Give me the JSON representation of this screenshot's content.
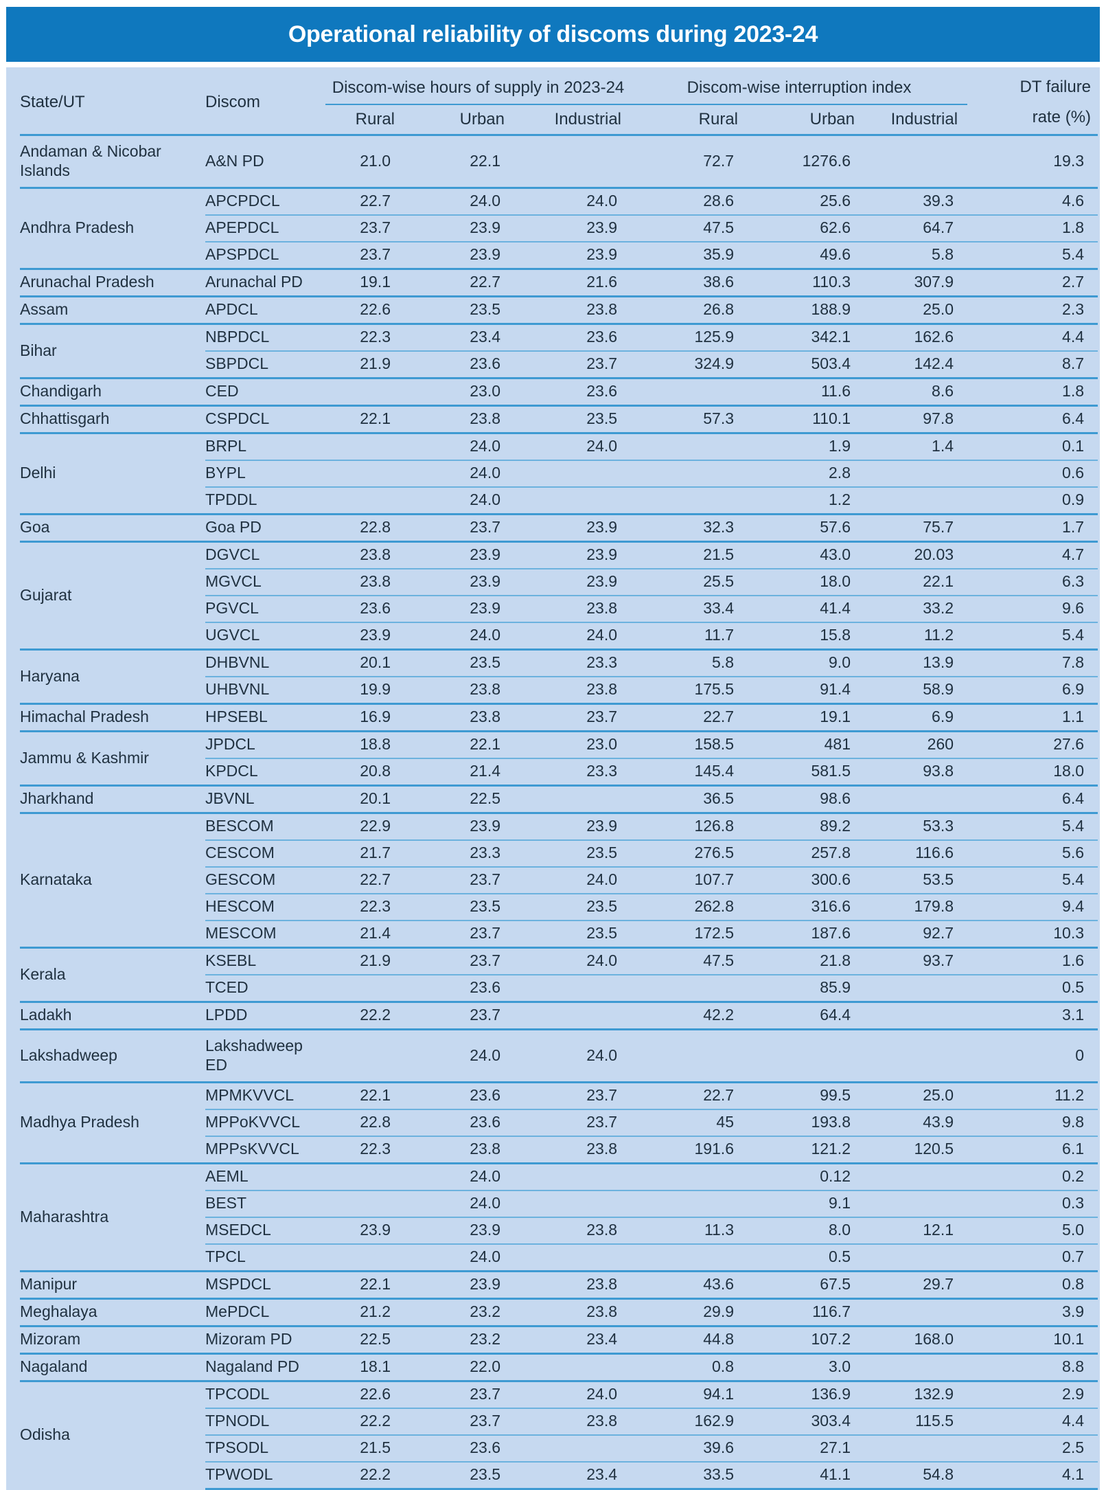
{
  "title": "Operational reliability of discoms during 2023-24",
  "colors": {
    "header_bar": "#0f78be",
    "sheet_bg": "#c6d9f0",
    "rule_heavy": "#3e9ad2",
    "rule_light": "#6cb2de",
    "text": "#203140"
  },
  "table": {
    "headers": {
      "state": "State/UT",
      "discom": "Discom",
      "hours_group": "Discom-wise hours of supply in 2023-24",
      "interruption_group": "Discom-wise interruption index",
      "dt_line1": "DT failure",
      "dt_line2": "rate (%)",
      "sub": [
        "Rural",
        "Urban",
        "Industrial",
        "Rural",
        "Urban",
        "Industrial"
      ]
    },
    "groups": [
      {
        "state": "Andaman & Nicobar Islands",
        "rows": [
          [
            "A&N PD",
            "21.0",
            "22.1",
            "",
            "72.7",
            "1276.6",
            "",
            "19.3"
          ]
        ]
      },
      {
        "state": "Andhra Pradesh",
        "rows": [
          [
            "APCPDCL",
            "22.7",
            "24.0",
            "24.0",
            "28.6",
            "25.6",
            "39.3",
            "4.6"
          ],
          [
            "APEPDCL",
            "23.7",
            "23.9",
            "23.9",
            "47.5",
            "62.6",
            "64.7",
            "1.8"
          ],
          [
            "APSPDCL",
            "23.7",
            "23.9",
            "23.9",
            "35.9",
            "49.6",
            "5.8",
            "5.4"
          ]
        ]
      },
      {
        "state": "Arunachal Pradesh",
        "rows": [
          [
            "Arunachal PD",
            "19.1",
            "22.7",
            "21.6",
            "38.6",
            "110.3",
            "307.9",
            "2.7"
          ]
        ]
      },
      {
        "state": "Assam",
        "rows": [
          [
            "APDCL",
            "22.6",
            "23.5",
            "23.8",
            "26.8",
            "188.9",
            "25.0",
            "2.3"
          ]
        ]
      },
      {
        "state": "Bihar",
        "rows": [
          [
            "NBPDCL",
            "22.3",
            "23.4",
            "23.6",
            "125.9",
            "342.1",
            "162.6",
            "4.4"
          ],
          [
            "SBPDCL",
            "21.9",
            "23.6",
            "23.7",
            "324.9",
            "503.4",
            "142.4",
            "8.7"
          ]
        ]
      },
      {
        "state": "Chandigarh",
        "rows": [
          [
            "CED",
            "",
            "23.0",
            "23.6",
            "",
            "11.6",
            "8.6",
            "1.8"
          ]
        ]
      },
      {
        "state": "Chhattisgarh",
        "rows": [
          [
            "CSPDCL",
            "22.1",
            "23.8",
            "23.5",
            "57.3",
            "110.1",
            "97.8",
            "6.4"
          ]
        ]
      },
      {
        "state": "Delhi",
        "rows": [
          [
            "BRPL",
            "",
            "24.0",
            "24.0",
            "",
            "1.9",
            "1.4",
            "0.1"
          ],
          [
            "BYPL",
            "",
            "24.0",
            "",
            "",
            "2.8",
            "",
            "0.6"
          ],
          [
            "TPDDL",
            "",
            "24.0",
            "",
            "",
            "1.2",
            "",
            "0.9"
          ]
        ]
      },
      {
        "state": "Goa",
        "rows": [
          [
            "Goa PD",
            "22.8",
            "23.7",
            "23.9",
            "32.3",
            "57.6",
            "75.7",
            "1.7"
          ]
        ]
      },
      {
        "state": "Gujarat",
        "rows": [
          [
            "DGVCL",
            "23.8",
            "23.9",
            "23.9",
            "21.5",
            "43.0",
            "20.03",
            "4.7"
          ],
          [
            "MGVCL",
            "23.8",
            "23.9",
            "23.9",
            "25.5",
            "18.0",
            "22.1",
            "6.3"
          ],
          [
            "PGVCL",
            "23.6",
            "23.9",
            "23.8",
            "33.4",
            "41.4",
            "33.2",
            "9.6"
          ],
          [
            "UGVCL",
            "23.9",
            "24.0",
            "24.0",
            "11.7",
            "15.8",
            "11.2",
            "5.4"
          ]
        ]
      },
      {
        "state": "Haryana",
        "rows": [
          [
            "DHBVNL",
            "20.1",
            "23.5",
            "23.3",
            "5.8",
            "9.0",
            "13.9",
            "7.8"
          ],
          [
            "UHBVNL",
            "19.9",
            "23.8",
            "23.8",
            "175.5",
            "91.4",
            "58.9",
            "6.9"
          ]
        ]
      },
      {
        "state": "Himachal Pradesh",
        "rows": [
          [
            "HPSEBL",
            "16.9",
            "23.8",
            "23.7",
            "22.7",
            "19.1",
            "6.9",
            "1.1"
          ]
        ]
      },
      {
        "state": "Jammu & Kashmir",
        "rows": [
          [
            "JPDCL",
            "18.8",
            "22.1",
            "23.0",
            "158.5",
            "481",
            "260",
            "27.6"
          ],
          [
            "KPDCL",
            "20.8",
            "21.4",
            "23.3",
            "145.4",
            "581.5",
            "93.8",
            "18.0"
          ]
        ]
      },
      {
        "state": "Jharkhand",
        "rows": [
          [
            "JBVNL",
            "20.1",
            "22.5",
            "",
            "36.5",
            "98.6",
            "",
            "6.4"
          ]
        ]
      },
      {
        "state": "Karnataka",
        "rows": [
          [
            "BESCOM",
            "22.9",
            "23.9",
            "23.9",
            "126.8",
            "89.2",
            "53.3",
            "5.4"
          ],
          [
            "CESCOM",
            "21.7",
            "23.3",
            "23.5",
            "276.5",
            "257.8",
            "116.6",
            "5.6"
          ],
          [
            "GESCOM",
            "22.7",
            "23.7",
            "24.0",
            "107.7",
            "300.6",
            "53.5",
            "5.4"
          ],
          [
            "HESCOM",
            "22.3",
            "23.5",
            "23.5",
            "262.8",
            "316.6",
            "179.8",
            "9.4"
          ],
          [
            "MESCOM",
            "21.4",
            "23.7",
            "23.5",
            "172.5",
            "187.6",
            "92.7",
            "10.3"
          ]
        ]
      },
      {
        "state": "Kerala",
        "rows": [
          [
            "KSEBL",
            "21.9",
            "23.7",
            "24.0",
            "47.5",
            "21.8",
            "93.7",
            "1.6"
          ],
          [
            "TCED",
            "",
            "23.6",
            "",
            "",
            "85.9",
            "",
            "0.5"
          ]
        ]
      },
      {
        "state": "Ladakh",
        "rows": [
          [
            "LPDD",
            "22.2",
            "23.7",
            "",
            "42.2",
            "64.4",
            "",
            "3.1"
          ]
        ]
      },
      {
        "state": "Lakshadweep",
        "rows": [
          [
            "Lakshadweep ED",
            "",
            "24.0",
            "24.0",
            "",
            "",
            "",
            "0"
          ]
        ]
      },
      {
        "state": "Madhya Pradesh",
        "rows": [
          [
            "MPMKVVCL",
            "22.1",
            "23.6",
            "23.7",
            "22.7",
            "99.5",
            "25.0",
            "11.2"
          ],
          [
            "MPPoKVVCL",
            "22.8",
            "23.6",
            "23.7",
            "45",
            "193.8",
            "43.9",
            "9.8"
          ],
          [
            "MPPsKVVCL",
            "22.3",
            "23.8",
            "23.8",
            "191.6",
            "121.2",
            "120.5",
            "6.1"
          ]
        ]
      },
      {
        "state": "Maharashtra",
        "rows": [
          [
            "AEML",
            "",
            "24.0",
            "",
            "",
            "0.12",
            "",
            "0.2"
          ],
          [
            "BEST",
            "",
            "24.0",
            "",
            "",
            "9.1",
            "",
            "0.3"
          ],
          [
            "MSEDCL",
            "23.9",
            "23.9",
            "23.8",
            "11.3",
            "8.0",
            "12.1",
            "5.0"
          ],
          [
            "TPCL",
            "",
            "24.0",
            "",
            "",
            "0.5",
            "",
            "0.7"
          ]
        ]
      },
      {
        "state": "Manipur",
        "rows": [
          [
            "MSPDCL",
            "22.1",
            "23.9",
            "23.8",
            "43.6",
            "67.5",
            "29.7",
            "0.8"
          ]
        ]
      },
      {
        "state": "Meghalaya",
        "rows": [
          [
            "MePDCL",
            "21.2",
            "23.2",
            "23.8",
            "29.9",
            "116.7",
            "",
            "3.9"
          ]
        ]
      },
      {
        "state": "Mizoram",
        "rows": [
          [
            "Mizoram PD",
            "22.5",
            "23.2",
            "23.4",
            "44.8",
            "107.2",
            "168.0",
            "10.1"
          ]
        ]
      },
      {
        "state": "Nagaland",
        "rows": [
          [
            "Nagaland PD",
            "18.1",
            "22.0",
            "",
            "0.8",
            "3.0",
            "",
            "8.8"
          ]
        ]
      },
      {
        "state": "Odisha",
        "rows": [
          [
            "TPCODL",
            "22.6",
            "23.7",
            "24.0",
            "94.1",
            "136.9",
            "132.9",
            "2.9"
          ],
          [
            "TPNODL",
            "22.2",
            "23.7",
            "23.8",
            "162.9",
            "303.4",
            "115.5",
            "4.4"
          ],
          [
            "TPSODL",
            "21.5",
            "23.6",
            "",
            "39.6",
            "27.1",
            "",
            "2.5"
          ],
          [
            "TPWODL",
            "22.2",
            "23.5",
            "23.4",
            "33.5",
            "41.1",
            "54.8",
            "4.1"
          ]
        ]
      }
    ]
  }
}
